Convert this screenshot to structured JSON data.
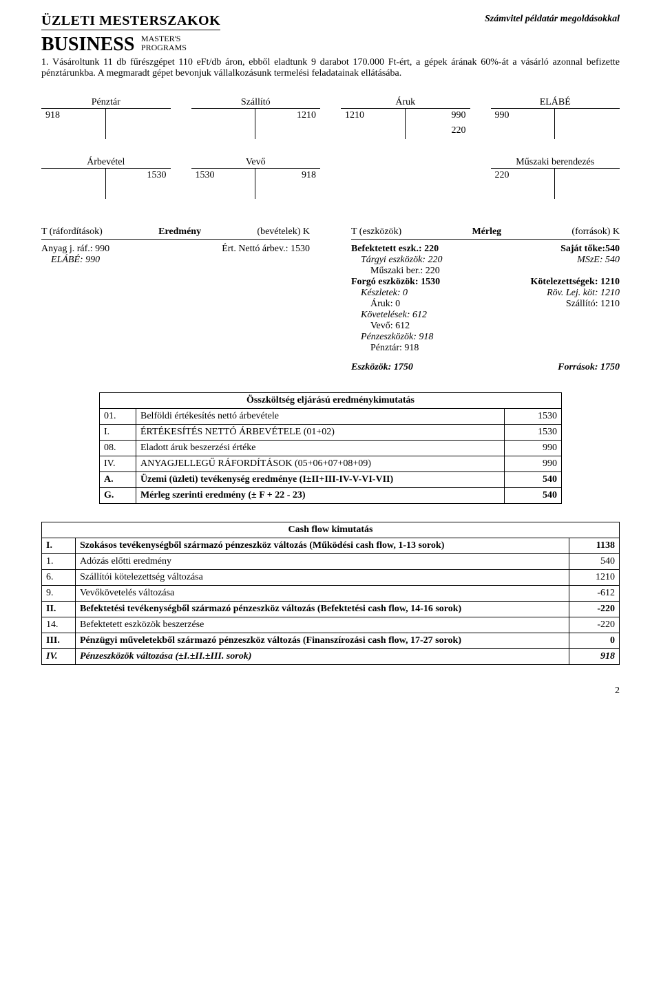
{
  "header": {
    "logo1": "ÜZLETI MESTERSZAKOK",
    "logo2": "BUSINESS",
    "logo2small1": "MASTER'S",
    "logo2small2": "PROGRAMS",
    "doc_title": "Számvitel példatár megoldásokkal"
  },
  "problem": "1. Vásároltunk 11 db fűrészgépet 110 eFt/db áron, ebből eladtunk 9 darabot 170.000 Ft-ért, a gépek árának 60%-át a vásárló azonnal befizette pénztárunkba. A megmaradt gépet bevonjuk vállalkozásunk termelési feladatainak ellátásába.",
  "tacc_row1": [
    {
      "title": "Pénztár",
      "rows": [
        {
          "l": "918",
          "r": ""
        },
        {
          "l": "",
          "r": ""
        }
      ]
    },
    {
      "title": "Szállító",
      "rows": [
        {
          "l": "",
          "r": "1210"
        },
        {
          "l": "",
          "r": ""
        }
      ]
    },
    {
      "title": "Áruk",
      "rows": [
        {
          "l": "1210",
          "r": "990"
        },
        {
          "l": "",
          "r": "220"
        }
      ]
    },
    {
      "title": "ELÁBÉ",
      "rows": [
        {
          "l": "990",
          "r": ""
        },
        {
          "l": "",
          "r": ""
        }
      ]
    }
  ],
  "tacc_row2": [
    {
      "title": "Árbevétel",
      "rows": [
        {
          "l": "",
          "r": "1530"
        },
        {
          "l": "",
          "r": ""
        }
      ]
    },
    {
      "title": "Vevő",
      "rows": [
        {
          "l": "1530",
          "r": "918"
        },
        {
          "l": "",
          "r": ""
        }
      ]
    },
    {
      "title": "Műszaki berendezés",
      "rows": [
        {
          "l": "220",
          "r": ""
        },
        {
          "l": "",
          "r": ""
        }
      ]
    }
  ],
  "eredmeny": {
    "head_l": "T (ráfordítások)",
    "head_c": "Eredmény",
    "head_r": "(bevételek) K",
    "left": [
      {
        "text": "Anyag j. ráf.: 990",
        "cls": ""
      },
      {
        "text": "ELÁBÉ: 990",
        "cls": "indent1"
      }
    ],
    "right": [
      {
        "text": "Ért. Nettó árbev.: 1530",
        "cls": ""
      }
    ]
  },
  "merleg": {
    "head_l": "T (eszközök)",
    "head_c": "Mérleg",
    "head_r": "(források) K",
    "assets": [
      {
        "text": "Befektetett eszk.: 220",
        "cls": "bold"
      },
      {
        "text": "Tárgyi eszközök: 220",
        "cls": "indent1"
      },
      {
        "text": "Műszaki ber.: 220",
        "cls": "indent2"
      },
      {
        "text": "Forgó eszközök: 1530",
        "cls": "bold"
      },
      {
        "text": "Készletek: 0",
        "cls": "indent1"
      },
      {
        "text": "Áruk: 0",
        "cls": "indent2"
      },
      {
        "text": "Követelések: 612",
        "cls": "indent1"
      },
      {
        "text": "Vevő: 612",
        "cls": "indent2"
      },
      {
        "text": "Pénzeszközök: 918",
        "cls": "indent1"
      },
      {
        "text": "Pénztár: 918",
        "cls": "indent2"
      }
    ],
    "liabs": [
      {
        "text": "Saját tőke:540",
        "cls": "bold"
      },
      {
        "text": "MSzE: 540",
        "cls": "indent1"
      },
      {
        "text": "",
        "cls": ""
      },
      {
        "text": "Kötelezettségek: 1210",
        "cls": "bold"
      },
      {
        "text": "Röv. Lej. köt: 1210",
        "cls": "indent1"
      },
      {
        "text": "Szállító: 1210",
        "cls": "indent2"
      }
    ],
    "sum_assets": "Eszközök: 1750",
    "sum_liabs": "Források: 1750"
  },
  "income_table": {
    "title": "Összköltség eljárású eredménykimutatás",
    "rows": [
      {
        "code": "01.",
        "desc": "Belföldi értékesítés nettó árbevétele",
        "val": "1530",
        "bold": false
      },
      {
        "code": "I.",
        "desc": "ÉRTÉKESÍTÉS NETTÓ ÁRBEVÉTELE (01+02)",
        "val": "1530",
        "bold": false
      },
      {
        "code": "08.",
        "desc": "Eladott áruk beszerzési értéke",
        "val": "990",
        "bold": false
      },
      {
        "code": "IV.",
        "desc": "ANYAGJELLEGŰ RÁFORDÍTÁSOK (05+06+07+08+09)",
        "val": "990",
        "bold": false
      },
      {
        "code": "A.",
        "desc": "Üzemi (üzleti) tevékenység eredménye (I±II+III-IV-V-VI-VII)",
        "val": "540",
        "bold": true
      },
      {
        "code": "G.",
        "desc": "Mérleg szerinti eredmény (± F + 22 - 23)",
        "val": "540",
        "bold": true
      }
    ]
  },
  "cashflow": {
    "title": "Cash flow kimutatás",
    "rows": [
      {
        "code": "I.",
        "desc": "Szokásos tevékenységből származó pénzeszköz változás (Működési cash flow, 1-13 sorok)",
        "val": "1138",
        "bold": true
      },
      {
        "code": "1.",
        "desc": "Adózás előtti eredmény",
        "val": "540",
        "bold": false
      },
      {
        "code": "6.",
        "desc": "Szállítói kötelezettség változása",
        "val": "1210",
        "bold": false
      },
      {
        "code": "9.",
        "desc": "Vevőkövetelés változása",
        "val": "-612",
        "bold": false
      },
      {
        "code": "II.",
        "desc": "Befektetési tevékenységből származó pénzeszköz változás (Befektetési cash flow, 14-16 sorok)",
        "val": "-220",
        "bold": true
      },
      {
        "code": "14.",
        "desc": "Befektetett eszközök beszerzése",
        "val": "-220",
        "bold": false
      },
      {
        "code": "III.",
        "desc": "Pénzügyi műveletekből származó pénzeszköz változás (Finanszírozási cash flow, 17-27 sorok)",
        "val": "0",
        "bold": true
      },
      {
        "code": "IV.",
        "desc": "Pénzeszközök változása (±I.±II.±III. sorok)",
        "val": "918",
        "bold": true,
        "italic": true
      }
    ]
  },
  "page_num": "2"
}
